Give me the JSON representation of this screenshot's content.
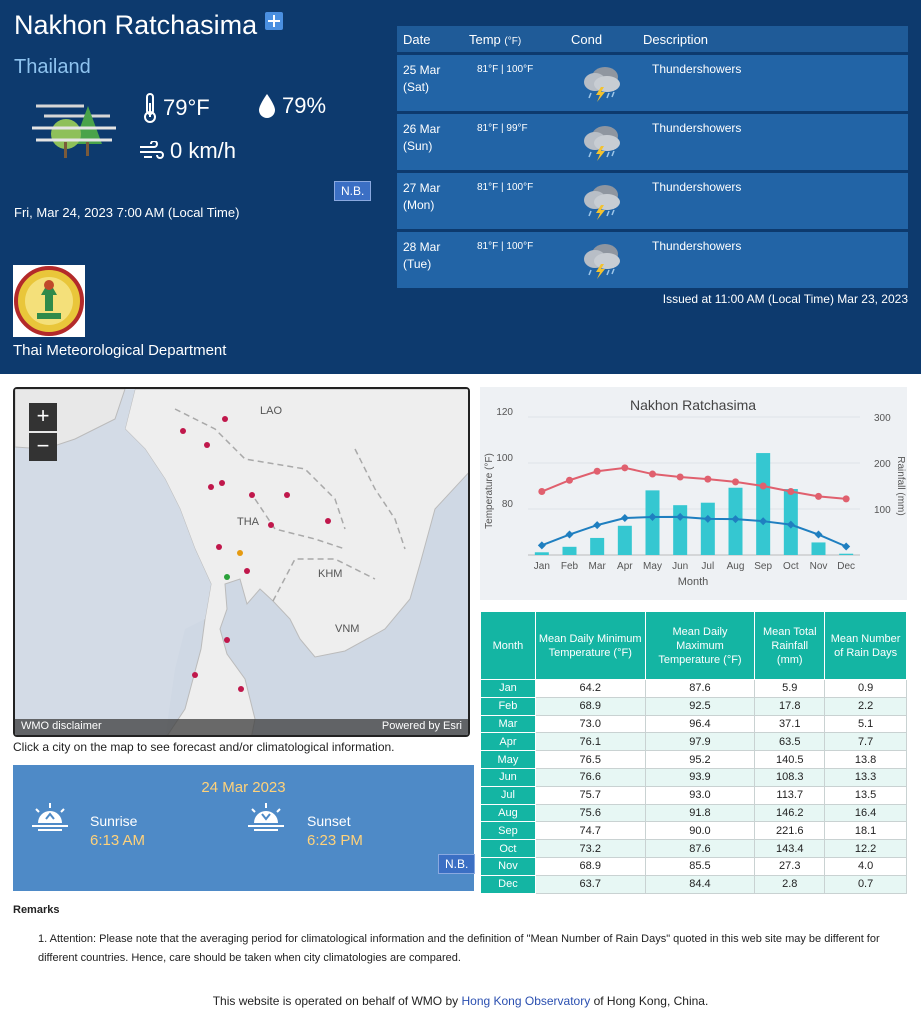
{
  "header": {
    "city": "Nakhon Ratchasima",
    "country": "Thailand",
    "temperature": "79°F",
    "humidity": "79%",
    "wind": "0 km/h",
    "nb": "N.B.",
    "local_time": "Fri, Mar 24, 2023 7:00 AM (Local Time)",
    "agency": "Thai Meteorological Department",
    "issued": "Issued at 11:00 AM (Local Time) Mar 23, 2023"
  },
  "forecast": {
    "headers": {
      "date": "Date",
      "temp": "Temp",
      "unit": "(°F)",
      "cond": "Cond",
      "desc": "Description"
    },
    "rows": [
      {
        "date1": "25 Mar",
        "date2": "(Sat)",
        "temp": "81°F | 100°F",
        "desc": "Thundershowers",
        "icon": "thundershower-icon"
      },
      {
        "date1": "26 Mar",
        "date2": "(Sun)",
        "temp": "81°F | 99°F",
        "desc": "Thundershowers",
        "icon": "thundershower-icon"
      },
      {
        "date1": "27 Mar",
        "date2": "(Mon)",
        "temp": "81°F | 100°F",
        "desc": "Thundershowers",
        "icon": "thundershower-icon"
      },
      {
        "date1": "28 Mar",
        "date2": "(Tue)",
        "temp": "81°F | 100°F",
        "desc": "Thundershowers",
        "icon": "thundershower-icon"
      }
    ]
  },
  "map": {
    "labels": [
      "LAO",
      "THA",
      "KHM",
      "VNM"
    ],
    "disclaimer": "WMO disclaimer",
    "powered": "Powered by Esri",
    "note": "Click a city on the map to see forecast and/or climatological information.",
    "colors": {
      "city": "#c0174b",
      "selected": "#e59a10",
      "current": "#2aa13a"
    }
  },
  "sun": {
    "date": "24 Mar 2023",
    "sunrise_label": "Sunrise",
    "sunrise": "6:13 AM",
    "sunset_label": "Sunset",
    "sunset": "6:23 PM",
    "nb": "N.B."
  },
  "chart_data": {
    "type": "bar+line",
    "title": "Nakhon Ratchasima",
    "xlabel": "Month",
    "ylabel_left": "Temperature (°F)",
    "ylabel_right": "Rainfall (mm)",
    "categories": [
      "Jan",
      "Feb",
      "Mar",
      "Apr",
      "May",
      "Jun",
      "Jul",
      "Aug",
      "Sep",
      "Oct",
      "Nov",
      "Dec"
    ],
    "left_ticks": [
      "120",
      "100",
      "80"
    ],
    "right_ticks": [
      "300",
      "200",
      "100"
    ],
    "ylim_left": [
      60,
      120
    ],
    "ylim_right": [
      0,
      300
    ],
    "series": [
      {
        "name": "Mean Daily Maximum Temperature",
        "axis": "left",
        "kind": "line",
        "color": "#e0606e",
        "values": [
          87.6,
          92.5,
          96.4,
          97.9,
          95.2,
          93.9,
          93.0,
          91.8,
          90.0,
          87.6,
          85.5,
          84.4
        ]
      },
      {
        "name": "Mean Daily Minimum Temperature",
        "axis": "left",
        "kind": "line",
        "color": "#1f7fc0",
        "values": [
          64.2,
          68.9,
          73.0,
          76.1,
          76.5,
          76.6,
          75.7,
          75.6,
          74.7,
          73.2,
          68.9,
          63.7
        ]
      },
      {
        "name": "Mean Total Rainfall",
        "axis": "right",
        "kind": "bar",
        "color": "#35c7d1",
        "values": [
          5.9,
          17.8,
          37.1,
          63.5,
          140.5,
          108.3,
          113.7,
          146.2,
          221.6,
          143.4,
          27.3,
          2.8
        ]
      }
    ]
  },
  "climate": {
    "headers": [
      "Month",
      "Mean Daily Minimum Temperature (°F)",
      "Mean Daily Maximum Temperature (°F)",
      "Mean Total Rainfall (mm)",
      "Mean Number of Rain Days"
    ],
    "rows": [
      [
        "Jan",
        "64.2",
        "87.6",
        "5.9",
        "0.9"
      ],
      [
        "Feb",
        "68.9",
        "92.5",
        "17.8",
        "2.2"
      ],
      [
        "Mar",
        "73.0",
        "96.4",
        "37.1",
        "5.1"
      ],
      [
        "Apr",
        "76.1",
        "97.9",
        "63.5",
        "7.7"
      ],
      [
        "May",
        "76.5",
        "95.2",
        "140.5",
        "13.8"
      ],
      [
        "Jun",
        "76.6",
        "93.9",
        "108.3",
        "13.3"
      ],
      [
        "Jul",
        "75.7",
        "93.0",
        "113.7",
        "13.5"
      ],
      [
        "Aug",
        "75.6",
        "91.8",
        "146.2",
        "16.4"
      ],
      [
        "Sep",
        "74.7",
        "90.0",
        "221.6",
        "18.1"
      ],
      [
        "Oct",
        "73.2",
        "87.6",
        "143.4",
        "12.2"
      ],
      [
        "Nov",
        "68.9",
        "85.5",
        "27.3",
        "4.0"
      ],
      [
        "Dec",
        "63.7",
        "84.4",
        "2.8",
        "0.7"
      ]
    ]
  },
  "remarks": {
    "title": "Remarks",
    "item": "1. Attention: Please note that the averaging period for climatological information and the definition of \"Mean Number of Rain Days\" quoted in this web site may be different for different countries. Hence, care should be taken when city climatologies are compared."
  },
  "footer": {
    "pre": "This website is operated on behalf of WMO by ",
    "link": "Hong Kong Observatory",
    "post": " of Hong Kong, China."
  }
}
